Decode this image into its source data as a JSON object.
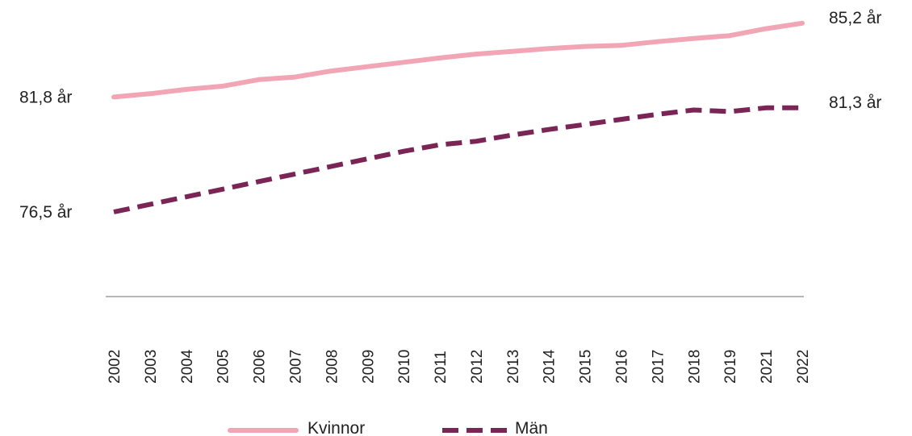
{
  "chart_data": {
    "type": "line",
    "title": "",
    "xlabel": "",
    "ylabel": "",
    "categories": [
      "2002",
      "2003",
      "2004",
      "2005",
      "2006",
      "2007",
      "2008",
      "2009",
      "2010",
      "2011",
      "2012",
      "2013",
      "2014",
      "2015",
      "2016",
      "2017",
      "2018",
      "2019",
      "2021",
      "2022"
    ],
    "series": [
      {
        "name": "Kvinnor",
        "color": "#f2a5b5",
        "style": "solid",
        "values": [
          81.8,
          81.95,
          82.15,
          82.3,
          82.6,
          82.72,
          83.0,
          83.2,
          83.4,
          83.6,
          83.78,
          83.9,
          84.03,
          84.13,
          84.18,
          84.35,
          84.5,
          84.63,
          84.95,
          85.2
        ],
        "start_label": "81,8 år",
        "end_label": "85,2 år"
      },
      {
        "name": "Män",
        "color": "#7b2456",
        "style": "dashed",
        "values": [
          76.5,
          76.85,
          77.2,
          77.55,
          77.9,
          78.25,
          78.6,
          78.95,
          79.3,
          79.6,
          79.76,
          80.05,
          80.3,
          80.53,
          80.77,
          81.0,
          81.2,
          81.13,
          81.3,
          81.3
        ],
        "start_label": "76,5 år",
        "end_label": "81,3 år"
      }
    ],
    "ylim": [
      72.6,
      85.9
    ],
    "grid": false,
    "legend_position": "bottom"
  }
}
